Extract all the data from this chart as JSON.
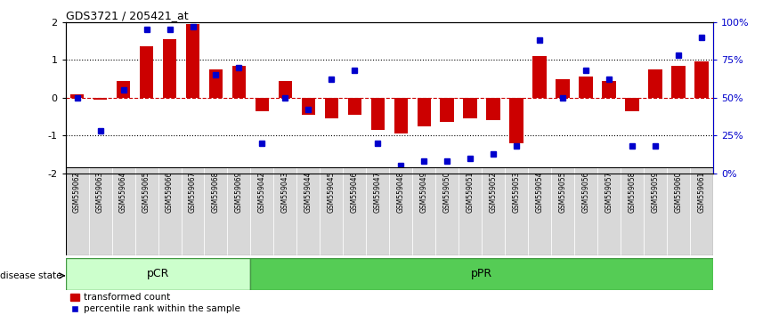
{
  "title": "GDS3721 / 205421_at",
  "samples": [
    "GSM559062",
    "GSM559063",
    "GSM559064",
    "GSM559065",
    "GSM559066",
    "GSM559067",
    "GSM559068",
    "GSM559069",
    "GSM559042",
    "GSM559043",
    "GSM559044",
    "GSM559045",
    "GSM559046",
    "GSM559047",
    "GSM559048",
    "GSM559049",
    "GSM559050",
    "GSM559051",
    "GSM559052",
    "GSM559053",
    "GSM559054",
    "GSM559055",
    "GSM559056",
    "GSM559057",
    "GSM559058",
    "GSM559059",
    "GSM559060",
    "GSM559061"
  ],
  "bar_values": [
    0.08,
    -0.05,
    0.45,
    1.35,
    1.55,
    1.95,
    0.75,
    0.85,
    -0.35,
    0.45,
    -0.45,
    -0.55,
    -0.45,
    -0.85,
    -0.95,
    -0.75,
    -0.65,
    -0.55,
    -0.6,
    -1.2,
    1.1,
    0.5,
    0.55,
    0.45,
    -0.35,
    0.75,
    0.85,
    0.95
  ],
  "percentile_values": [
    50,
    28,
    55,
    95,
    95,
    97,
    65,
    70,
    20,
    50,
    42,
    62,
    68,
    20,
    5,
    8,
    8,
    10,
    13,
    18,
    88,
    50,
    68,
    62,
    18,
    18,
    78,
    90
  ],
  "bar_color": "#cc0000",
  "percentile_color": "#0000cc",
  "pCR_count": 8,
  "pPR_count": 20,
  "pCR_color_light": "#ccffcc",
  "pCR_color": "#aaddaa",
  "pPR_color": "#55cc55",
  "pCR_label": "pCR",
  "pPR_label": "pPR",
  "disease_state_label": "disease state",
  "legend_bar_label": "transformed count",
  "legend_pct_label": "percentile rank within the sample",
  "ylim": [
    -2,
    2
  ],
  "right_ylim": [
    0,
    100
  ],
  "right_yticks": [
    0,
    25,
    50,
    75,
    100
  ],
  "right_yticklabels": [
    "0%",
    "25%",
    "50%",
    "75%",
    "100%"
  ],
  "left_yticks": [
    -2,
    -1,
    0,
    1,
    2
  ],
  "hline_y": 0,
  "dotted_lines": [
    -1,
    1
  ],
  "background_color": "#ffffff",
  "xtick_bg_color": "#d8d8d8"
}
